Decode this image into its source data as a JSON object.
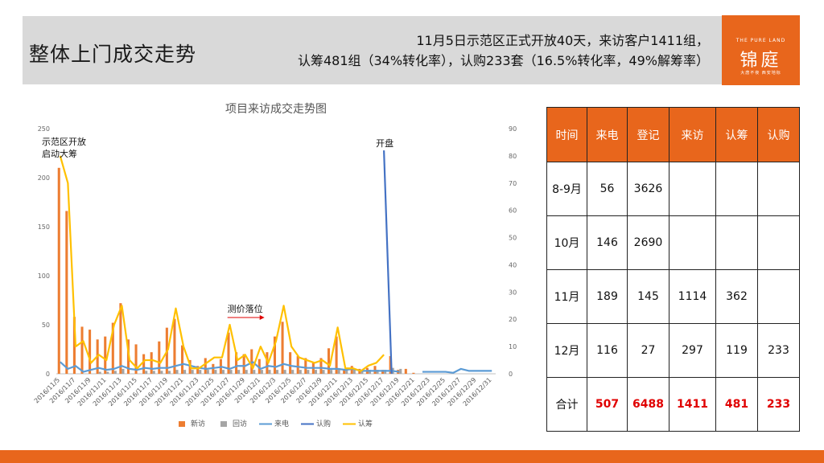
{
  "header": {
    "title": "整体上门成交走势",
    "summary_line1": "11月5日示范区正式开放40天，来访客户1411组，",
    "summary_line2": "认筹481组（34%转化率），认购233套（16.5%转化率，49%解筹率）"
  },
  "logo": {
    "en": "THE PURE LAND",
    "cn": "锦庭",
    "sub": "大唐不夜  西安地标"
  },
  "chart_data": {
    "type": "bar",
    "title": "项目来访成交走势图",
    "x": [
      "2016/11/5",
      "2016/11/6",
      "2016/11/7",
      "2016/11/8",
      "2016/11/9",
      "2016/11/10",
      "2016/11/11",
      "2016/11/12",
      "2016/11/13",
      "2016/11/14",
      "2016/11/15",
      "2016/11/16",
      "2016/11/17",
      "2016/11/18",
      "2016/11/19",
      "2016/11/20",
      "2016/11/21",
      "2016/11/22",
      "2016/11/23",
      "2016/11/24",
      "2016/11/25",
      "2016/11/26",
      "2016/11/27",
      "2016/11/28",
      "2016/11/29",
      "2016/11/30",
      "2016/12/1",
      "2016/12/2",
      "2016/12/3",
      "2016/12/4",
      "2016/12/5",
      "2016/12/6",
      "2016/12/7",
      "2016/12/8",
      "2016/12/9",
      "2016/12/10",
      "2016/12/11",
      "2016/12/12",
      "2016/12/13",
      "2016/12/14",
      "2016/12/15",
      "2016/12/16",
      "2016/12/17",
      "2016/12/18",
      "2016/12/19",
      "2016/12/20",
      "2016/12/21",
      "2016/12/22",
      "2016/12/23",
      "2016/12/24",
      "2016/12/25",
      "2016/12/26",
      "2016/12/27",
      "2016/12/28",
      "2016/12/29",
      "2016/12/30",
      "2016/12/31"
    ],
    "x_tick_labels": [
      "2016/11/5",
      "2016/11/7",
      "2016/11/9",
      "2016/11/11",
      "2016/11/13",
      "2016/11/15",
      "2016/11/17",
      "2016/11/19",
      "2016/11/21",
      "2016/11/23",
      "2016/11/25",
      "2016/11/27",
      "2016/11/29",
      "2016/12/1",
      "2016/12/3",
      "2016/12/5",
      "2016/12/7",
      "2016/12/9",
      "2016/12/11",
      "2016/12/13",
      "2016/12/15",
      "2016/12/17",
      "2016/12/19",
      "2016/12/21",
      "2016/12/23",
      "2016/12/25",
      "2016/12/27",
      "2016/12/29",
      "2016/12/31"
    ],
    "y_left_range": [
      0,
      250
    ],
    "y_left_ticks": [
      0,
      50,
      100,
      150,
      200,
      250
    ],
    "y_right_range": [
      0,
      90
    ],
    "y_right_ticks": [
      0,
      10,
      20,
      30,
      40,
      50,
      60,
      70,
      80,
      90
    ],
    "series": [
      {
        "name": "新访",
        "type": "bar",
        "axis": "left",
        "color": "#ed7d31",
        "values": [
          210,
          166,
          58,
          48,
          45,
          35,
          38,
          52,
          72,
          35,
          30,
          20,
          22,
          33,
          47,
          56,
          29,
          14,
          8,
          16,
          10,
          15,
          42,
          22,
          20,
          25,
          15,
          22,
          38,
          53,
          22,
          18,
          16,
          12,
          16,
          26,
          38,
          5,
          8,
          5,
          6,
          8,
          4,
          18,
          4,
          5,
          1,
          0,
          0,
          0,
          0,
          0,
          0,
          0,
          0,
          0,
          0
        ]
      },
      {
        "name": "回访",
        "type": "bar",
        "axis": "left",
        "color": "#a5a5a5",
        "values": [
          0,
          0,
          0,
          0,
          0,
          2,
          2,
          3,
          5,
          0,
          0,
          3,
          3,
          3,
          3,
          4,
          4,
          4,
          4,
          4,
          4,
          4,
          4,
          4,
          4,
          4,
          4,
          4,
          4,
          4,
          4,
          4,
          4,
          4,
          4,
          4,
          4,
          4,
          4,
          4,
          4,
          4,
          4,
          6,
          5,
          0,
          0,
          0,
          0,
          0,
          0,
          0,
          0,
          0,
          0,
          0,
          0
        ]
      },
      {
        "name": "来电",
        "type": "line",
        "axis": "left",
        "color": "#5b9bd5",
        "values": [
          12,
          5,
          8,
          2,
          4,
          6,
          4,
          5,
          8,
          5,
          4,
          6,
          5,
          6,
          6,
          8,
          10,
          8,
          6,
          5,
          6,
          7,
          5,
          8,
          8,
          12,
          5,
          8,
          7,
          10,
          8,
          7,
          6,
          6,
          6,
          5,
          5,
          4,
          5,
          3,
          3,
          3,
          3,
          3,
          2,
          null,
          null,
          2,
          2,
          2,
          2,
          1,
          5,
          3,
          3,
          3,
          3
        ]
      },
      {
        "name": "认购",
        "type": "line",
        "axis": "right",
        "color": "#4472c4",
        "values": [
          null,
          null,
          null,
          null,
          null,
          null,
          null,
          null,
          null,
          null,
          null,
          null,
          null,
          null,
          null,
          null,
          null,
          null,
          null,
          null,
          null,
          null,
          null,
          null,
          null,
          null,
          null,
          null,
          null,
          null,
          null,
          null,
          null,
          null,
          null,
          null,
          null,
          null,
          null,
          null,
          null,
          null,
          82,
          0,
          null,
          null,
          null,
          null,
          null,
          null,
          null,
          null,
          null,
          null,
          null,
          null,
          null
        ]
      },
      {
        "name": "认筹",
        "type": "line",
        "axis": "right",
        "color": "#ffc000",
        "values": [
          80,
          70,
          10,
          12,
          4,
          7,
          5,
          18,
          25,
          5,
          2,
          5,
          5,
          4,
          9,
          24,
          10,
          2,
          2,
          4,
          6,
          6,
          18,
          5,
          7,
          2,
          10,
          4,
          12,
          25,
          10,
          6,
          5,
          4,
          5,
          3,
          17,
          2,
          2,
          1,
          3,
          4,
          7,
          null,
          null,
          null,
          null,
          null,
          null,
          null,
          null,
          null,
          null,
          null,
          null,
          null,
          null
        ]
      }
    ],
    "legend_position": "bottom",
    "annotations": [
      {
        "text_line1": "示范区开放",
        "text_line2": "启动大筹",
        "date": "2016/11/5"
      },
      {
        "text": "开盘",
        "date": "2016/12/17"
      },
      {
        "text": "测价落位",
        "date": "2016/11/29"
      }
    ]
  },
  "table": {
    "headers": [
      "时间",
      "来电",
      "登记",
      "来访",
      "认筹",
      "认购"
    ],
    "rows": [
      [
        "8-9月",
        "56",
        "3626",
        "",
        "",
        ""
      ],
      [
        "10月",
        "146",
        "2690",
        "",
        "",
        ""
      ],
      [
        "11月",
        "189",
        "145",
        "1114",
        "362",
        ""
      ],
      [
        "12月",
        "116",
        "27",
        "297",
        "119",
        "233"
      ]
    ],
    "total": [
      "合计",
      "507",
      "6488",
      "1411",
      "481",
      "233"
    ],
    "header_bg": "#e8661c",
    "total_color": "#e00000"
  }
}
